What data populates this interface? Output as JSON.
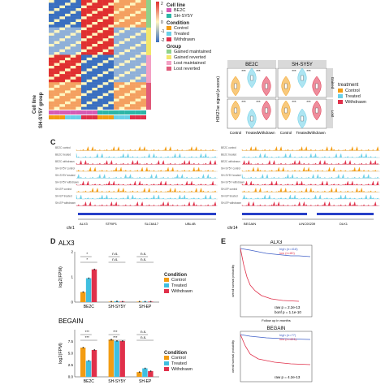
{
  "panel_A": {
    "heatmap_side_labels": [
      "Cell line",
      "SH-SY5Y group"
    ],
    "legend": {
      "cell_line_title": "Cell line",
      "cell_line_items": [
        {
          "label": "BE2C",
          "color": "#d65bb4"
        },
        {
          "label": "SH-SY5Y",
          "color": "#2cb5a6"
        }
      ],
      "condition_title": "Condition",
      "condition_items": [
        {
          "label": "Control",
          "color": "#f39c12"
        },
        {
          "label": "Treated",
          "color": "#6ad0e8"
        },
        {
          "label": "Withdrawn",
          "color": "#e0304a"
        }
      ],
      "group_title": "Group",
      "group_items": [
        {
          "label": "Gained maintained",
          "color": "#8fd18a"
        },
        {
          "label": "Gained reverted",
          "color": "#f2e66b"
        },
        {
          "label": "Lost maintained",
          "color": "#f3a0c4"
        },
        {
          "label": "Lost reverted",
          "color": "#e05a7a"
        }
      ],
      "scale_ticks": [
        "2",
        "1",
        "0",
        "-1",
        "-2"
      ]
    }
  },
  "panel_B": {
    "facet_titles": [
      "BE2C",
      "SH-SY5Y"
    ],
    "row_strips": [
      "Gained",
      "Lost"
    ],
    "ylabel": "H3K27ac signal (z-score)",
    "x_categories": [
      "Control",
      "Treated",
      "Withdrawn"
    ],
    "legend_title": "treatment",
    "legend_items": [
      {
        "label": "Control",
        "color": "#f39c12"
      },
      {
        "label": "Treated",
        "color": "#6ad0e8"
      },
      {
        "label": "Withdrawn",
        "color": "#e0304a"
      }
    ],
    "sig_label": "***"
  },
  "panel_C": {
    "letter": "C",
    "left_tracks": [
      "BE2C control",
      "BE2C treated",
      "BE2C withdrawn",
      "SH-SY5Y control",
      "SH-SY5Y treated",
      "SH-SY5Y withdrawn",
      "SH-EP control",
      "SH-EP treated",
      "SH-EP withdrawn"
    ],
    "right_tracks": [
      "BE2C control",
      "BE2C treated",
      "BE2C withdrawn",
      "SH-SY5Y control",
      "SH-SY5Y treated",
      "SH-SY5Y withdrawn",
      "SH-EP control",
      "SH-EP treated",
      "SH-EP withdrawn"
    ],
    "left_chrom": "chr1",
    "right_chrom": "chr14",
    "left_genes": [
      "ALX3",
      "STRIP1",
      "SLC6A17",
      "UBL4B"
    ],
    "right_genes": [
      "BEGAIN",
      "LINC00239",
      "DLK1"
    ],
    "track_colors": [
      "#f39c12",
      "#6ad0e8",
      "#e0304a",
      "#f39c12",
      "#6ad0e8",
      "#e0304a",
      "#f39c12",
      "#6ad0e8",
      "#e0304a"
    ]
  },
  "panel_D": {
    "letter": "D",
    "legend_title": "Condition",
    "legend_items": [
      {
        "label": "Control",
        "color": "#f39c12"
      },
      {
        "label": "Treated",
        "color": "#3fbfe0"
      },
      {
        "label": "Withdrawn",
        "color": "#e0304a"
      }
    ],
    "ylabel": "log2(FPM)",
    "charts_titles": [
      "ALX3",
      "BEGAIN"
    ]
  },
  "panel_E": {
    "letter": "E",
    "top": {
      "title": "ALX3",
      "legend": [
        {
          "label": "high (n=418)",
          "color": "#4060c8"
        },
        {
          "label": "low (n=80)",
          "color": "#e0304a"
        }
      ],
      "raw_p": "raw p = 2.2e-13",
      "bonf_p": "bonf p = 1.1e-10",
      "xlabel": "Follow up in months",
      "ylabel": "overall survival probability"
    },
    "bottom": {
      "title": "BEGAIN",
      "legend": [
        {
          "label": "high (n=77)",
          "color": "#4060c8"
        },
        {
          "label": "low (n=421)",
          "color": "#e0304a"
        }
      ],
      "raw_p": "raw p = 4.2e-13",
      "ylabel": "overall survival probability"
    }
  },
  "chart_data": [
    {
      "type": "bar",
      "title": "ALX3",
      "xlabel": "",
      "ylabel": "log2(FPM)",
      "categories": [
        "BE2C",
        "SH-SY5Y",
        "SH-EP"
      ],
      "series": [
        {
          "name": "Control",
          "values": [
            0.4,
            0.02,
            0.02
          ]
        },
        {
          "name": "Treated",
          "values": [
            0.95,
            0.03,
            0.02
          ]
        },
        {
          "name": "Withdrawn",
          "values": [
            1.3,
            0.02,
            0.02
          ]
        }
      ],
      "ylim": [
        0,
        2
      ],
      "yticks": [
        "0",
        "1",
        "2"
      ],
      "annotations": [
        "*",
        "*",
        "n.s.",
        "n.s.",
        "n.s.",
        "n.s."
      ],
      "legend": "right"
    },
    {
      "type": "bar",
      "title": "BEGAIN",
      "xlabel": "",
      "ylabel": "log2(FPM)",
      "categories": [
        "BE2C",
        "SH-SY5Y",
        "SH-EP"
      ],
      "series": [
        {
          "name": "Control",
          "values": [
            6.2,
            7.9,
            1.0
          ]
        },
        {
          "name": "Treated",
          "values": [
            3.4,
            7.6,
            1.8
          ]
        },
        {
          "name": "Withdrawn",
          "values": [
            5.7,
            7.6,
            1.2
          ]
        }
      ],
      "ylim": [
        0,
        10
      ],
      "yticks": [
        "0.0",
        "2.5",
        "5.0",
        "7.5"
      ],
      "annotations": [
        "***",
        "***",
        "***",
        "***",
        "n.s.",
        "n.s."
      ],
      "legend": "right"
    }
  ]
}
